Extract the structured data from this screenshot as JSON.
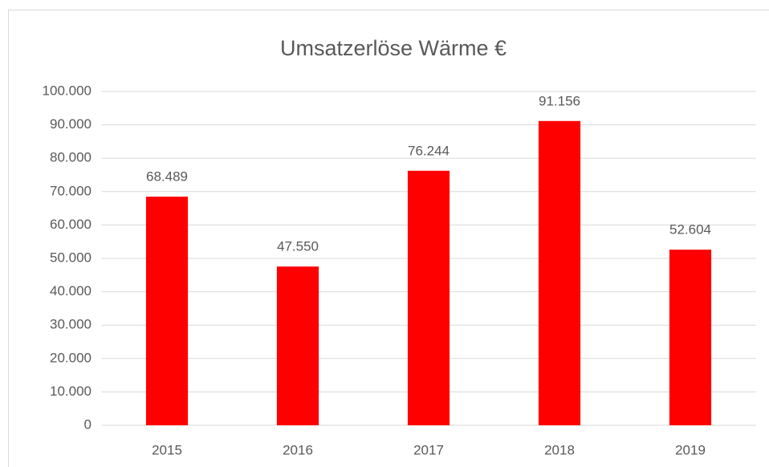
{
  "chart_data": {
    "type": "bar",
    "title": "Umsatzerlöse Wärme €",
    "categories": [
      "2015",
      "2016",
      "2017",
      "2018",
      "2019"
    ],
    "values": [
      68489,
      47550,
      76244,
      91156,
      52604
    ],
    "value_labels": [
      "68.489",
      "47.550",
      "76.244",
      "91.156",
      "52.604"
    ],
    "color": "#ff0000",
    "ylim": [
      0,
      100000
    ],
    "yticks": [
      0,
      {
        "value": 10000,
        "label": "10.000"
      },
      {
        "value": 20000,
        "label": "20.000"
      },
      {
        "value": 30000,
        "label": "30.000"
      },
      {
        "value": 40000,
        "label": "40.000"
      },
      {
        "value": 50000,
        "label": "50.000"
      },
      {
        "value": 60000,
        "label": "60.000"
      },
      {
        "value": 70000,
        "label": "70.000"
      },
      {
        "value": 80000,
        "label": "80.000"
      },
      {
        "value": 90000,
        "label": "90.000"
      },
      {
        "value": 100000,
        "label": "100.000"
      }
    ],
    "grid": true
  }
}
